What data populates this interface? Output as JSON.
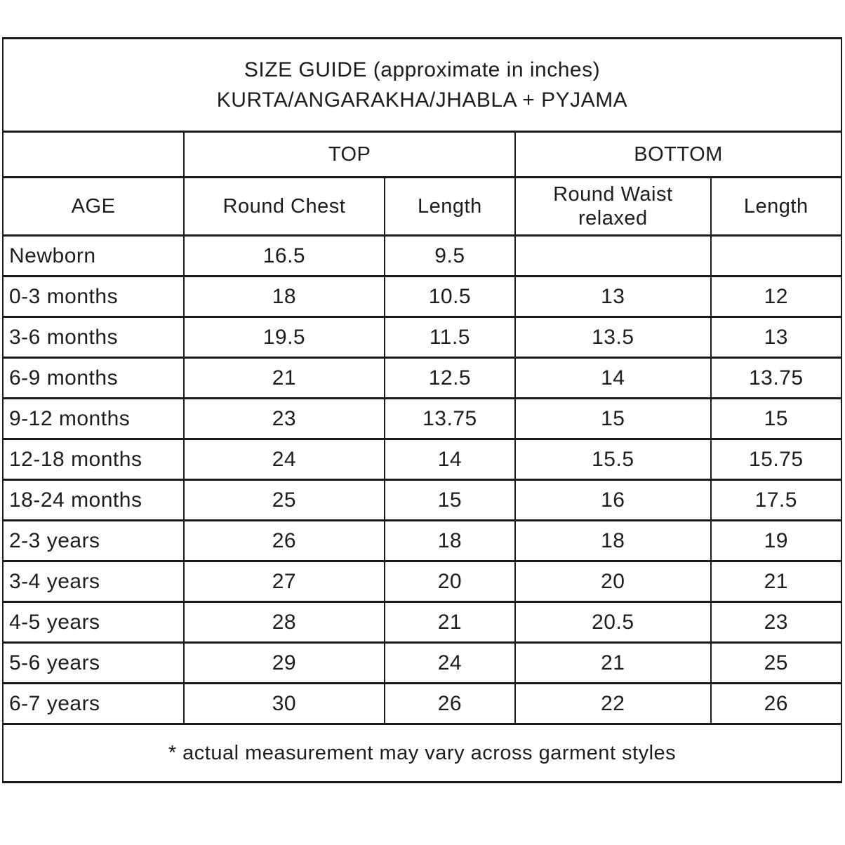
{
  "title": {
    "line1": "SIZE GUIDE (approximate in inches)",
    "line2": "KURTA/ANGARAKHA/JHABLA + PYJAMA"
  },
  "colors": {
    "banner_bg": "#7ad6d6",
    "banner_text": "#ffffff",
    "header_bg": "#f0f0f0",
    "border": "#1a1a1a",
    "text": "#1d1d1d",
    "row_bg": "#ffffff"
  },
  "table": {
    "group_headers": {
      "top": "TOP",
      "bottom": "BOTTOM"
    },
    "column_headers": {
      "age": "AGE",
      "round_chest": "Round Chest",
      "top_length": "Length",
      "round_waist": "Round Waist relaxed",
      "bottom_length": "Length"
    },
    "rows": [
      {
        "age": "Newborn",
        "round_chest": "16.5",
        "top_length": "9.5",
        "round_waist": "",
        "bottom_length": ""
      },
      {
        "age": "0-3 months",
        "round_chest": "18",
        "top_length": "10.5",
        "round_waist": "13",
        "bottom_length": "12"
      },
      {
        "age": "3-6 months",
        "round_chest": "19.5",
        "top_length": "11.5",
        "round_waist": "13.5",
        "bottom_length": "13"
      },
      {
        "age": "6-9 months",
        "round_chest": "21",
        "top_length": "12.5",
        "round_waist": "14",
        "bottom_length": "13.75"
      },
      {
        "age": "9-12 months",
        "round_chest": "23",
        "top_length": "13.75",
        "round_waist": "15",
        "bottom_length": "15"
      },
      {
        "age": "12-18 months",
        "round_chest": "24",
        "top_length": "14",
        "round_waist": "15.5",
        "bottom_length": "15.75"
      },
      {
        "age": "18-24 months",
        "round_chest": "25",
        "top_length": "15",
        "round_waist": "16",
        "bottom_length": "17.5"
      },
      {
        "age": "2-3 years",
        "round_chest": "26",
        "top_length": "18",
        "round_waist": "18",
        "bottom_length": "19"
      },
      {
        "age": "3-4 years",
        "round_chest": "27",
        "top_length": "20",
        "round_waist": "20",
        "bottom_length": "21"
      },
      {
        "age": "4-5 years",
        "round_chest": "28",
        "top_length": "21",
        "round_waist": "20.5",
        "bottom_length": "23"
      },
      {
        "age": "5-6 years",
        "round_chest": "29",
        "top_length": "24",
        "round_waist": "21",
        "bottom_length": "25"
      },
      {
        "age": "6-7 years",
        "round_chest": "30",
        "top_length": "26",
        "round_waist": "22",
        "bottom_length": "26"
      }
    ]
  },
  "footnote": "* actual measurement may vary across garment styles"
}
